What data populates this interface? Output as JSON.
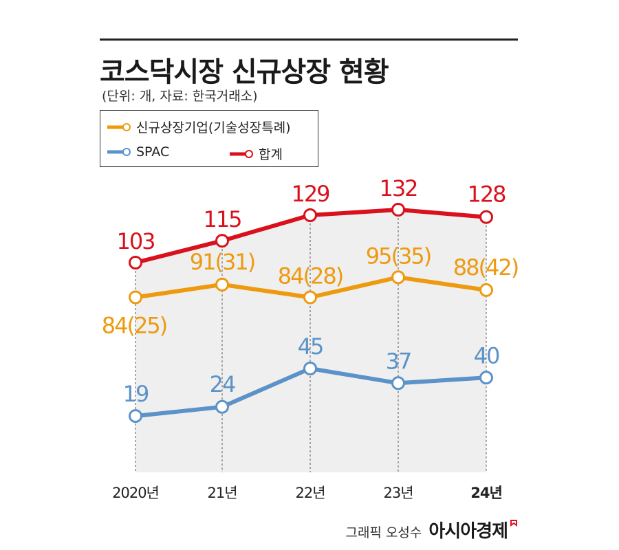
{
  "header": {
    "title": "코스닥시장 신규상장 현황",
    "unit_source": "(단위: 개, 자료: 한국거래소)"
  },
  "colors": {
    "total": "#d9111c",
    "new_listing": "#ee9a0e",
    "spac": "#5b92c8",
    "plot_bg": "#efefef"
  },
  "legend": [
    {
      "key": "new_listing",
      "label": "신규상장기업(기술성장특례)"
    },
    {
      "key": "spac",
      "label": "SPAC"
    },
    {
      "key": "total",
      "label": "합계"
    }
  ],
  "chart_data": {
    "type": "line",
    "categories": [
      "2020년",
      "21년",
      "22년",
      "23년",
      "24년"
    ],
    "series": [
      {
        "key": "total",
        "name": "합계",
        "values": [
          103,
          115,
          129,
          132,
          128
        ],
        "labels": [
          "103",
          "115",
          "129",
          "132",
          "128"
        ]
      },
      {
        "key": "new_listing",
        "name": "신규상장기업(기술성장특례)",
        "values": [
          84,
          91,
          84,
          95,
          88
        ],
        "tech_special": [
          25,
          31,
          28,
          35,
          42
        ],
        "labels": [
          "84(25)",
          "91(31)",
          "84(28)",
          "95(35)",
          "88(42)"
        ]
      },
      {
        "key": "spac",
        "name": "SPAC",
        "values": [
          19,
          24,
          45,
          37,
          40
        ],
        "labels": [
          "19",
          "24",
          "45",
          "37",
          "40"
        ]
      }
    ],
    "title": "코스닥시장 신규상장 현황",
    "xlabel": "",
    "ylabel": "",
    "grid": "vertical dashed",
    "legend_position": "top-left"
  },
  "footer": {
    "credit": "그래픽 오성수",
    "brand": "아시아경제"
  }
}
